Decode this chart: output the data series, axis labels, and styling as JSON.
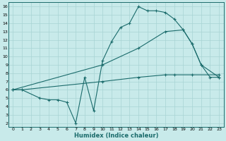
{
  "xlabel": "Humidex (Indice chaleur)",
  "bg_color": "#c8eaea",
  "grid_color": "#a8d4d4",
  "line_color": "#1a6b6b",
  "xlim": [
    -0.5,
    23.5
  ],
  "ylim": [
    1.5,
    16.5
  ],
  "xticks": [
    0,
    1,
    2,
    3,
    4,
    5,
    6,
    7,
    8,
    9,
    10,
    11,
    12,
    13,
    14,
    15,
    16,
    17,
    18,
    19,
    20,
    21,
    22,
    23
  ],
  "yticks": [
    2,
    3,
    4,
    5,
    6,
    7,
    8,
    9,
    10,
    11,
    12,
    13,
    14,
    15,
    16
  ],
  "curve1_x": [
    0,
    1,
    3,
    4,
    5,
    6,
    7,
    8,
    9,
    10,
    11,
    12,
    13,
    14,
    15,
    16,
    17,
    18,
    19,
    20,
    21,
    22,
    23
  ],
  "curve1_y": [
    6,
    6,
    5,
    4.8,
    4.8,
    4.5,
    2.0,
    7.5,
    3.5,
    9.5,
    11.8,
    13.5,
    14.0,
    16.0,
    15.5,
    15.5,
    15.3,
    14.5,
    13.2,
    11.5,
    9.0,
    7.5,
    7.5
  ],
  "curve2_x": [
    0,
    1,
    10,
    14,
    17,
    18,
    20,
    23
  ],
  "curve2_y": [
    6.0,
    6.0,
    7.0,
    7.5,
    7.8,
    7.8,
    7.8,
    7.8
  ],
  "curve3_x": [
    0,
    10,
    14,
    17,
    19,
    20,
    21,
    23
  ],
  "curve3_y": [
    6.0,
    9.0,
    11.0,
    13.0,
    13.2,
    11.5,
    9.0,
    7.5
  ],
  "marker_size": 2.5
}
